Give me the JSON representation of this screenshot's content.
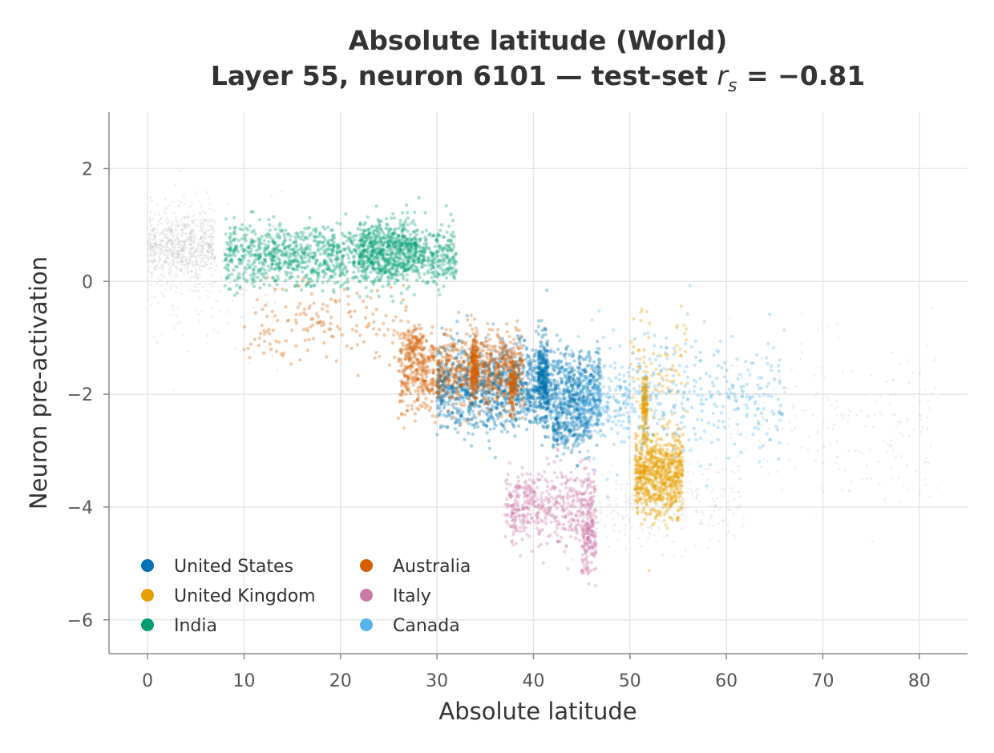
{
  "chart_data": {
    "type": "scatter",
    "title_line1": "Absolute latitude (World)",
    "title_line2_prefix": "Layer 55, neuron 6101 — test-set ",
    "title_stat_symbol": "r",
    "title_stat_subscript": "s",
    "title_line2_suffix": " = −0.81",
    "xlabel": "Absolute latitude",
    "ylabel": "Neuron pre-activation",
    "xlim": [
      -4,
      85
    ],
    "ylim": [
      -6.6,
      3.0
    ],
    "x_ticks": [
      0,
      10,
      20,
      30,
      40,
      50,
      60,
      70,
      80
    ],
    "y_ticks": [
      2,
      0,
      -2,
      -4,
      -6
    ],
    "x_tick_labels": [
      "0",
      "10",
      "20",
      "30",
      "40",
      "50",
      "60",
      "70",
      "80"
    ],
    "y_tick_labels": [
      "2",
      "0",
      "−2",
      "−4",
      "−6"
    ],
    "grid": true,
    "legend_position": "lower-left",
    "background_series": {
      "name": "",
      "color": "#b0b0b0",
      "clusters": [
        {
          "x_range": [
            0,
            7
          ],
          "y_center": 0.6,
          "y_spread": 0.55,
          "count": 700
        },
        {
          "x_range": [
            0,
            14
          ],
          "y_center": 0.0,
          "y_spread": 1.2,
          "count": 150
        },
        {
          "x_range": [
            44,
            62
          ],
          "y_center": -4.0,
          "y_spread": 0.6,
          "count": 320
        },
        {
          "x_range": [
            60,
            82
          ],
          "y_center": -2.5,
          "y_spread": 1.3,
          "count": 220
        }
      ]
    },
    "series": [
      {
        "name": "United States",
        "color": "#0072b2",
        "clusters": [
          {
            "x_range": [
              30,
              47
            ],
            "y_center": -1.9,
            "y_spread": 0.6,
            "count": 1600
          },
          {
            "x_range": [
              40.5,
              41.5
            ],
            "y_center": -1.7,
            "y_spread": 0.6,
            "count": 250
          },
          {
            "x_range": [
              42,
              46
            ],
            "y_center": -2.6,
            "y_spread": 0.4,
            "count": 200
          }
        ]
      },
      {
        "name": "United Kingdom",
        "color": "#e69f00",
        "clusters": [
          {
            "x_range": [
              50.5,
              55.5
            ],
            "y_center": -3.4,
            "y_spread": 0.6,
            "count": 800
          },
          {
            "x_range": [
              51.3,
              51.8
            ],
            "y_center": -2.2,
            "y_spread": 0.5,
            "count": 150
          },
          {
            "x_range": [
              50,
              56
            ],
            "y_center": -1.5,
            "y_spread": 0.8,
            "count": 80
          }
        ]
      },
      {
        "name": "India",
        "color": "#009e73",
        "clusters": [
          {
            "x_range": [
              8,
              32
            ],
            "y_center": 0.45,
            "y_spread": 0.45,
            "count": 1300
          },
          {
            "x_range": [
              22,
              28
            ],
            "y_center": 0.6,
            "y_spread": 0.45,
            "count": 350
          }
        ]
      },
      {
        "name": "Australia",
        "color": "#d55e00",
        "clusters": [
          {
            "x_range": [
              26,
              39
            ],
            "y_center": -1.6,
            "y_spread": 0.55,
            "count": 900
          },
          {
            "x_range": [
              33.5,
              34.2
            ],
            "y_center": -1.5,
            "y_spread": 0.45,
            "count": 180
          },
          {
            "x_range": [
              37.5,
              38.2
            ],
            "y_center": -1.8,
            "y_spread": 0.45,
            "count": 120
          },
          {
            "x_range": [
              27,
              28.5
            ],
            "y_center": -1.1,
            "y_spread": 0.3,
            "count": 90
          },
          {
            "x_range": [
              10,
              27
            ],
            "y_center": -0.8,
            "y_spread": 0.6,
            "count": 160
          }
        ]
      },
      {
        "name": "Italy",
        "color": "#cc79a7",
        "clusters": [
          {
            "x_range": [
              37,
              46.5
            ],
            "y_center": -4.0,
            "y_spread": 0.55,
            "count": 500
          },
          {
            "x_range": [
              45,
              46.5
            ],
            "y_center": -4.6,
            "y_spread": 0.5,
            "count": 140
          }
        ]
      },
      {
        "name": "Canada",
        "color": "#56b4e9",
        "clusters": [
          {
            "x_range": [
              42,
              66
            ],
            "y_center": -2.0,
            "y_spread": 0.9,
            "count": 450
          },
          {
            "x_range": [
              45,
              50
            ],
            "y_center": -2.2,
            "y_spread": 0.5,
            "count": 150
          }
        ]
      }
    ],
    "legend": {
      "columns": [
        [
          "United States",
          "United Kingdom",
          "India"
        ],
        [
          "Australia",
          "Italy",
          "Canada"
        ]
      ]
    }
  }
}
